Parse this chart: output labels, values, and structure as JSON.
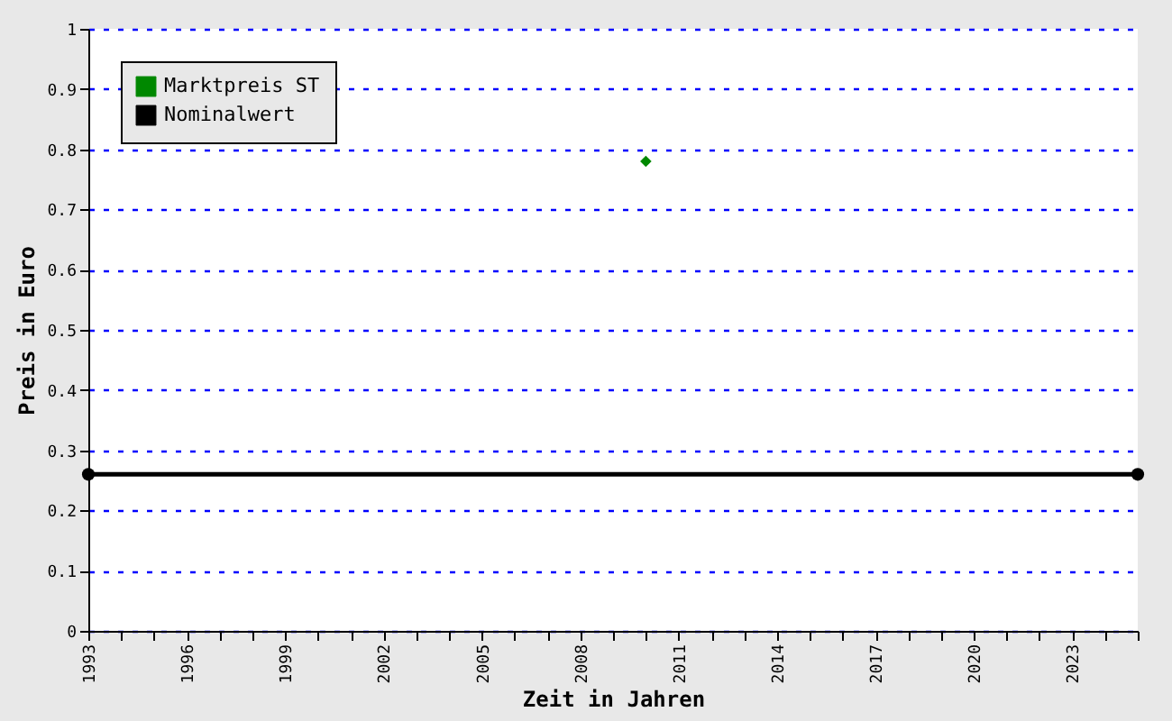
{
  "chart_data": {
    "type": "line",
    "xlabel": "Zeit in Jahren",
    "ylabel": "Preis in Euro",
    "xlim": [
      1993,
      2025
    ],
    "ylim": [
      0,
      1
    ],
    "xticks": [
      1993,
      {
        "value": 1994,
        "label": null
      },
      {
        "value": 1995,
        "label": null
      },
      1996,
      {
        "value": 1997,
        "label": null
      },
      {
        "value": 1998,
        "label": null
      },
      1999,
      {
        "value": 2000,
        "label": null
      },
      {
        "value": 2001,
        "label": null
      },
      2002,
      {
        "value": 2003,
        "label": null
      },
      {
        "value": 2004,
        "label": null
      },
      2005,
      {
        "value": 2006,
        "label": null
      },
      {
        "value": 2007,
        "label": null
      },
      2008,
      {
        "value": 2009,
        "label": null
      },
      {
        "value": 2010,
        "label": null
      },
      2011,
      {
        "value": 2012,
        "label": null
      },
      {
        "value": 2013,
        "label": null
      },
      2014,
      {
        "value": 2015,
        "label": null
      },
      {
        "value": 2016,
        "label": null
      },
      2017,
      {
        "value": 2018,
        "label": null
      },
      {
        "value": 2019,
        "label": null
      },
      2020,
      {
        "value": 2021,
        "label": null
      },
      {
        "value": 2022,
        "label": null
      },
      2023,
      {
        "value": 2024,
        "label": null
      },
      {
        "value": 2025,
        "label": null
      }
    ],
    "yticks": [
      0,
      0.1,
      0.2,
      0.3,
      0.4,
      0.5,
      0.6,
      0.7,
      0.8,
      0.9,
      1
    ],
    "grid": "y",
    "legend": "top left",
    "line_style": "solid",
    "series": [
      {
        "name": "Marktpreis ST",
        "type": "scatter",
        "marker": "diamond",
        "color": "#008800",
        "x": [
          2010
        ],
        "values": [
          0.78
        ]
      },
      {
        "name": "Nominalwert",
        "marker": "circle",
        "color": "#000000",
        "x": [
          1993,
          2025
        ],
        "values": [
          0.26,
          0.26
        ]
      }
    ]
  }
}
